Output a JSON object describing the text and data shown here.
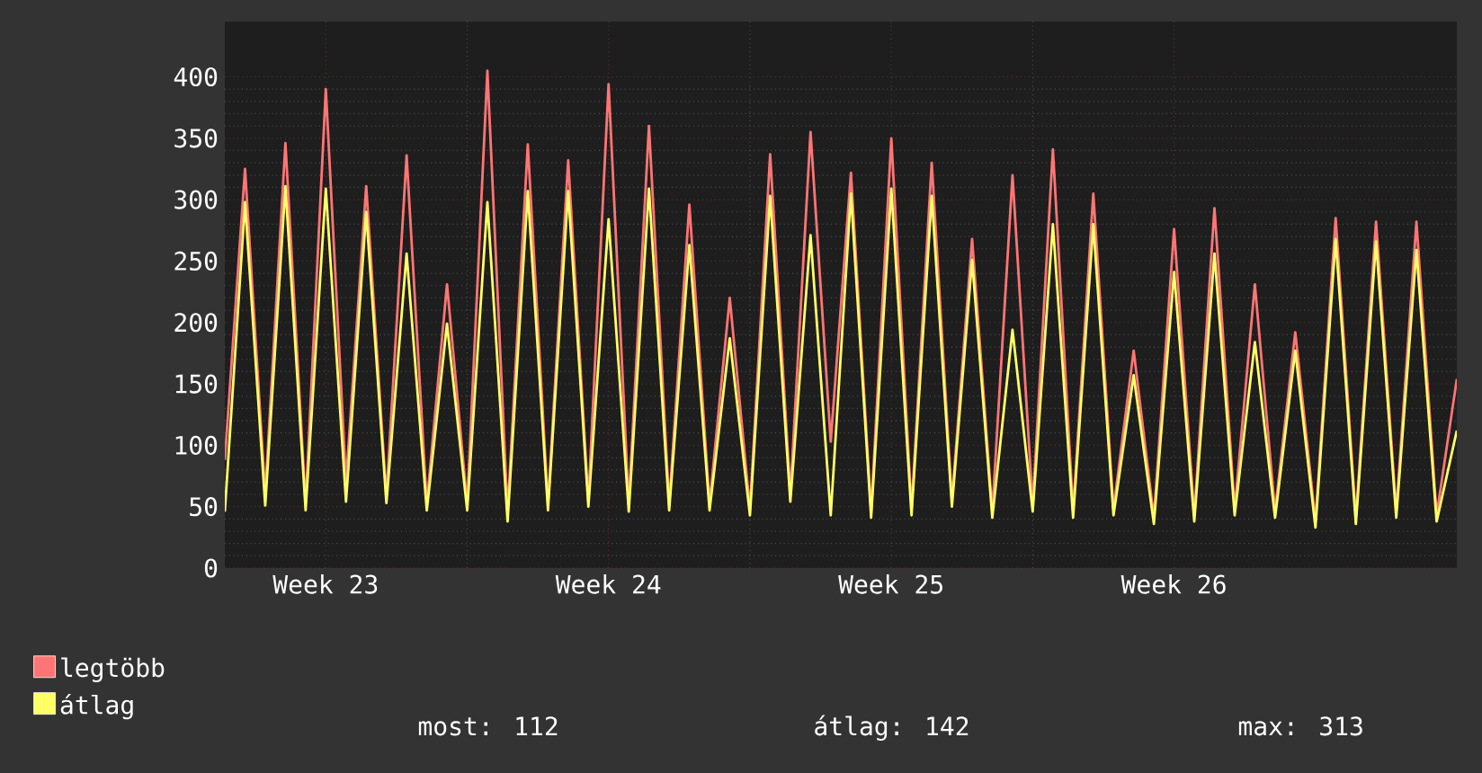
{
  "chart_data": {
    "type": "line",
    "categories": [
      null,
      null,
      null,
      null,
      null,
      "Week 23",
      null,
      null,
      null,
      null,
      null,
      null,
      null,
      null,
      null,
      null,
      null,
      null,
      null,
      "Week 24",
      null,
      null,
      null,
      null,
      null,
      null,
      null,
      null,
      null,
      null,
      null,
      null,
      null,
      "Week 25",
      null,
      null,
      null,
      null,
      null,
      null,
      null,
      null,
      null,
      null,
      null,
      null,
      null,
      "Week 26",
      null,
      null,
      null,
      null,
      null,
      null,
      null,
      null,
      null,
      null,
      null,
      null,
      null,
      null
    ],
    "series": [
      {
        "name": "legtöbb",
        "color": "#ff7575",
        "values": [
          88,
          325,
          60,
          346,
          52,
          390,
          70,
          311,
          58,
          336,
          52,
          231,
          52,
          405,
          45,
          345,
          52,
          332,
          55,
          394,
          52,
          360,
          52,
          296,
          52,
          220,
          48,
          337,
          60,
          355,
          103,
          322,
          46,
          350,
          48,
          330,
          55,
          268,
          46,
          320,
          51,
          341,
          46,
          305,
          48,
          177,
          41,
          276,
          43,
          293,
          48,
          231,
          46,
          192,
          38,
          285,
          41,
          282,
          46,
          282,
          43,
          154
        ]
      },
      {
        "name": "átlag",
        "color": "#ffff66",
        "values": [
          46,
          298,
          51,
          311,
          47,
          309,
          54,
          290,
          53,
          256,
          47,
          199,
          47,
          298,
          38,
          307,
          47,
          307,
          50,
          284,
          46,
          309,
          47,
          263,
          47,
          187,
          43,
          303,
          54,
          271,
          43,
          305,
          41,
          309,
          43,
          303,
          50,
          251,
          41,
          194,
          46,
          280,
          41,
          280,
          43,
          157,
          36,
          241,
          38,
          256,
          43,
          184,
          41,
          177,
          33,
          268,
          36,
          266,
          41,
          259,
          38,
          112
        ]
      }
    ],
    "ylim": [
      0,
      445
    ],
    "yticks": [
      0,
      50,
      100,
      150,
      200,
      250,
      300,
      350,
      400
    ],
    "grid": true,
    "legend": "bottom",
    "line_style": "solid",
    "annotations": [
      "most: 112",
      "átlag: 142",
      "max: 313"
    ]
  }
}
